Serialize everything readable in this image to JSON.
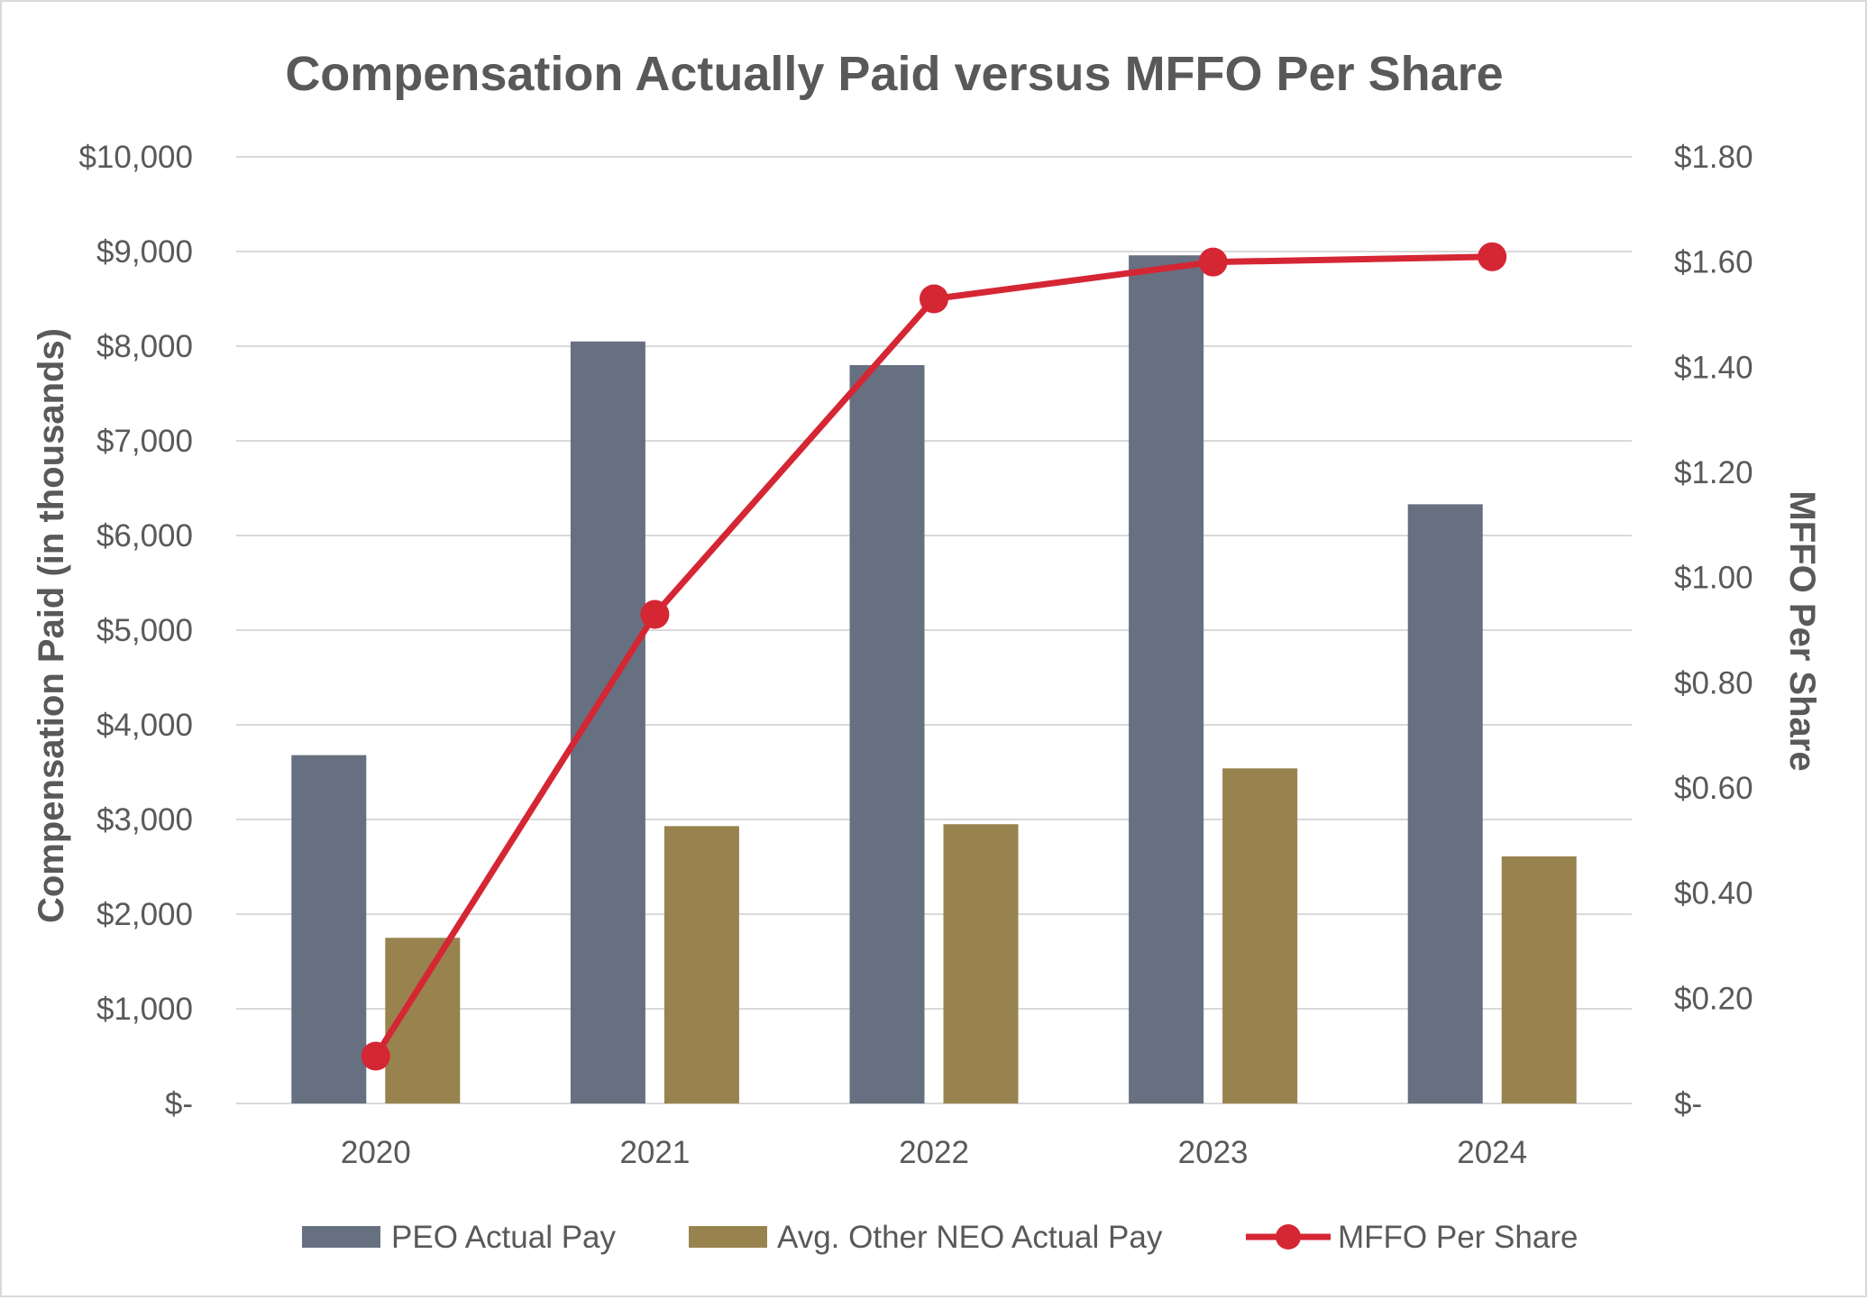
{
  "chart_data": {
    "type": "bar",
    "title": "Compensation Actually Paid versus MFFO Per Share",
    "categories": [
      "2020",
      "2021",
      "2022",
      "2023",
      "2024"
    ],
    "ylabel": "Compensation Paid (in thousands)",
    "y2label": "MFFO Per Share",
    "ylim": [
      0,
      10000
    ],
    "y2lim": [
      0,
      1.8
    ],
    "yticks": [
      "$-",
      "$1,000",
      "$2,000",
      "$3,000",
      "$4,000",
      "$5,000",
      "$6,000",
      "$7,000",
      "$8,000",
      "$9,000",
      "$10,000"
    ],
    "y2ticks": [
      "$-",
      "$0.20",
      "$0.40",
      "$0.60",
      "$0.80",
      "$1.00",
      "$1.20",
      "$1.40",
      "$1.60",
      "$1.80"
    ],
    "grid": true,
    "legend_position": "bottom",
    "series": [
      {
        "name": "PEO Actual Pay",
        "kind": "bar",
        "axis": "left",
        "color": "#677080",
        "values": [
          3680,
          8050,
          7800,
          8960,
          6330
        ]
      },
      {
        "name": "Avg. Other NEO Actual Pay",
        "kind": "bar",
        "axis": "left",
        "color": "#98834e",
        "values": [
          1750,
          2930,
          2950,
          3540,
          2610
        ]
      },
      {
        "name": "MFFO Per Share",
        "kind": "line",
        "axis": "right",
        "color": "#d52634",
        "values": [
          0.09,
          0.93,
          1.53,
          1.6,
          1.61
        ]
      }
    ]
  }
}
